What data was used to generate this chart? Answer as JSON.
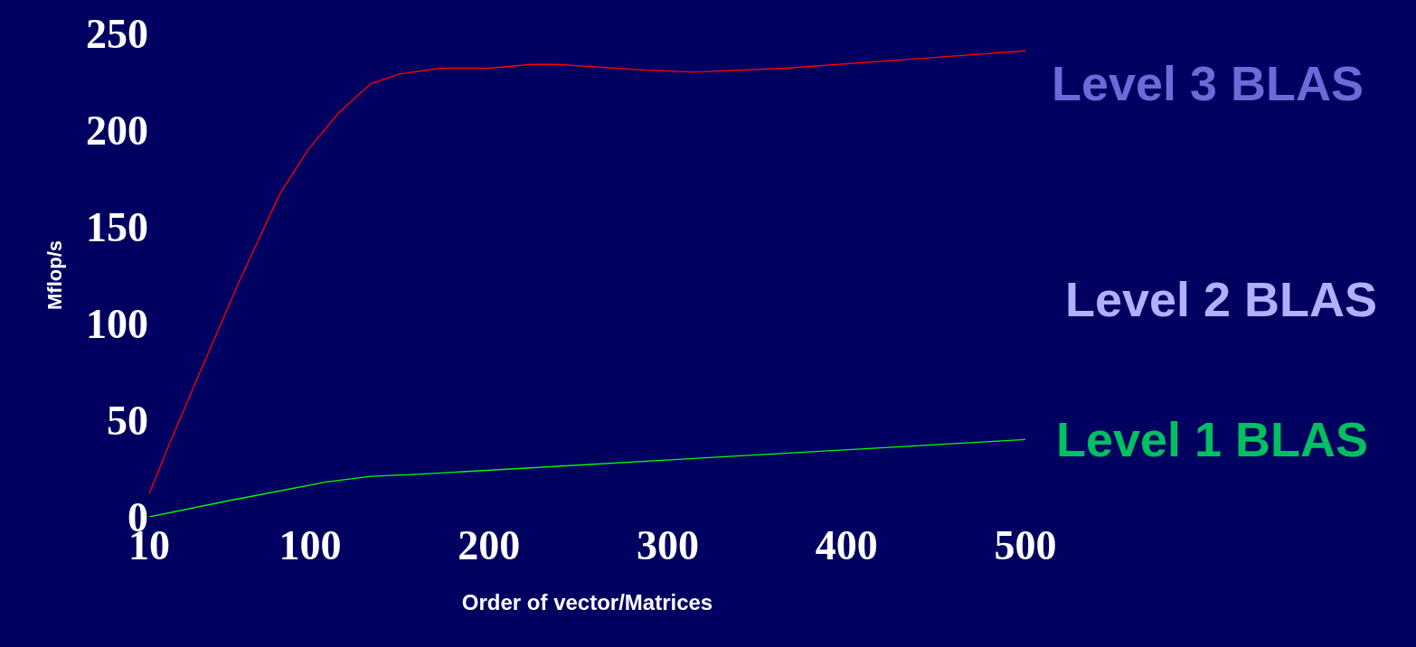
{
  "chart_data": {
    "type": "line",
    "xlabel": "Order of vector/Matrices",
    "ylabel": "Mflop/s",
    "xlim": [
      10,
      500
    ],
    "xticks": [
      10,
      100,
      200,
      300,
      400,
      500
    ],
    "ylim": [
      0,
      250
    ],
    "yticks": [
      0,
      50,
      100,
      150,
      200,
      250
    ],
    "grid": false,
    "legend": false,
    "marker": "none",
    "line_style": "solid",
    "series": [
      {
        "color": "#ff0000",
        "x": [
          10,
          21,
          38,
          60,
          83,
          99,
          116,
          134,
          150,
          173,
          200,
          224,
          238,
          288,
          314,
          366,
          500
        ],
        "values": [
          12,
          37,
          74,
          121,
          167,
          190,
          209,
          224,
          229,
          232,
          232,
          234,
          234,
          231,
          230,
          232,
          241
        ]
      },
      {
        "color": "#00ff00",
        "x": [
          10,
          58,
          109,
          134,
          160,
          500
        ],
        "values": [
          0,
          9,
          18,
          21,
          22,
          40
        ]
      }
    ],
    "annotations": [
      "Level 3 BLAS",
      "Level 2 BLAS",
      "Level 1 BLAS"
    ]
  }
}
